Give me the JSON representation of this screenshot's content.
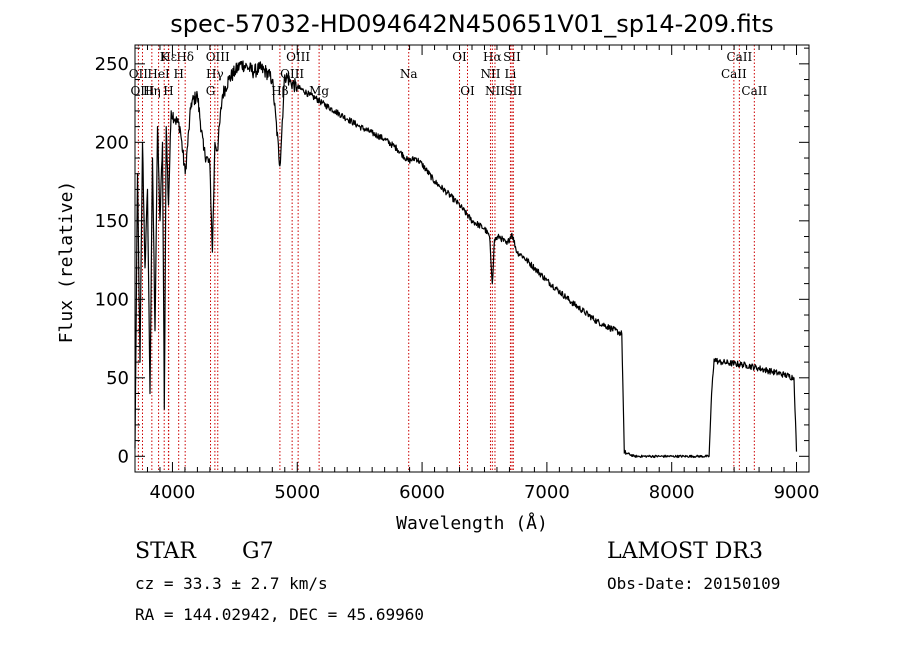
{
  "chart_data": {
    "type": "line",
    "title": "spec-57032-HD094642N450651V01_sp14-209.fits",
    "xlabel": "Wavelength (Å)",
    "ylabel": "Flux (relative)",
    "xlim": [
      3700,
      9100
    ],
    "ylim": [
      -10,
      262
    ],
    "xticks": [
      4000,
      5000,
      6000,
      7000,
      8000,
      9000
    ],
    "yticks": [
      0,
      50,
      100,
      150,
      200,
      250
    ],
    "series": [
      {
        "name": "flux",
        "x": [
          3700,
          3720,
          3740,
          3760,
          3780,
          3800,
          3820,
          3840,
          3860,
          3880,
          3900,
          3920,
          3935,
          3950,
          3968,
          3990,
          4020,
          4060,
          4102,
          4150,
          4200,
          4250,
          4300,
          4320,
          4340,
          4360,
          4400,
          4450,
          4500,
          4550,
          4600,
          4650,
          4700,
          4750,
          4800,
          4861,
          4900,
          4950,
          5000,
          5050,
          5100,
          5150,
          5200,
          5300,
          5400,
          5500,
          5600,
          5700,
          5800,
          5890,
          5950,
          6000,
          6100,
          6200,
          6300,
          6400,
          6500,
          6540,
          6563,
          6580,
          6620,
          6680,
          6720,
          6760,
          6800,
          6900,
          7000,
          7100,
          7200,
          7300,
          7400,
          7500,
          7600,
          7620,
          7640,
          7700,
          7800,
          7900,
          8000,
          8100,
          8200,
          8300,
          8320,
          8340,
          8380,
          8400,
          8500,
          8600,
          8700,
          8800,
          8900,
          8980,
          9000
        ],
        "values": [
          5,
          180,
          60,
          200,
          120,
          170,
          40,
          190,
          80,
          210,
          150,
          200,
          30,
          210,
          160,
          220,
          215,
          210,
          180,
          225,
          230,
          195,
          185,
          130,
          200,
          195,
          230,
          240,
          245,
          250,
          248,
          245,
          247,
          245,
          240,
          185,
          243,
          238,
          235,
          233,
          230,
          228,
          225,
          220,
          215,
          210,
          206,
          202,
          196,
          188,
          190,
          186,
          175,
          168,
          160,
          150,
          145,
          140,
          110,
          138,
          140,
          135,
          142,
          130,
          128,
          120,
          112,
          105,
          98,
          92,
          86,
          82,
          78,
          2,
          2,
          0,
          0,
          0,
          0,
          0,
          0,
          0,
          40,
          62,
          60,
          60,
          59,
          58,
          56,
          54,
          52,
          50,
          3
        ]
      }
    ],
    "lines": [
      {
        "label": "Hε",
        "wl": 3970,
        "row": 1
      },
      {
        "label": "OII",
        "wl": 3727,
        "row": 2
      },
      {
        "label": "OIII",
        "wl": 3760,
        "row": 3
      },
      {
        "label": "K",
        "wl": 3934,
        "row": 1
      },
      {
        "label": "HeI",
        "wl": 3889,
        "row": 2
      },
      {
        "label": "Hη",
        "wl": 3835,
        "row": 3
      },
      {
        "label": "Hδ",
        "wl": 4102,
        "row": 1
      },
      {
        "label": "H",
        "wl": 4050,
        "row": 2
      },
      {
        "label": "H",
        "wl": 3968,
        "row": 3
      },
      {
        "label": "OIII",
        "wl": 4363,
        "row": 1
      },
      {
        "label": "Hγ",
        "wl": 4340,
        "row": 2
      },
      {
        "label": "G",
        "wl": 4305,
        "row": 3
      },
      {
        "label": "OIII",
        "wl": 5007,
        "row": 1
      },
      {
        "label": "OIII",
        "wl": 4959,
        "row": 2
      },
      {
        "label": "Hβ",
        "wl": 4861,
        "row": 3
      },
      {
        "label": "Mg",
        "wl": 5175,
        "row": 3
      },
      {
        "label": "Na",
        "wl": 5893,
        "row": 2
      },
      {
        "label": "OI",
        "wl": 6300,
        "row": 1
      },
      {
        "label": "OI",
        "wl": 6364,
        "row": 3
      },
      {
        "label": "Hα",
        "wl": 6563,
        "row": 1
      },
      {
        "label": "SII",
        "wl": 6720,
        "row": 1
      },
      {
        "label": "NII",
        "wl": 6548,
        "row": 2
      },
      {
        "label": "Li",
        "wl": 6708,
        "row": 2
      },
      {
        "label": "NII",
        "wl": 6584,
        "row": 3
      },
      {
        "label": "SII",
        "wl": 6731,
        "row": 3
      },
      {
        "label": "CaII",
        "wl": 8542,
        "row": 1
      },
      {
        "label": "CaII",
        "wl": 8498,
        "row": 2
      },
      {
        "label": "CaII",
        "wl": 8662,
        "row": 3
      }
    ]
  },
  "info": {
    "class_label": "STAR",
    "subclass": "G7",
    "survey": "LAMOST DR3",
    "cz": "cz = 33.3 ± 2.7 km/s",
    "obs_date": "Obs-Date: 20150109",
    "coords": "RA = 144.02942, DEC =  45.69960"
  },
  "colors": {
    "spectrum": "#000000",
    "line_marker": "#cc0000",
    "axes": "#000000"
  }
}
